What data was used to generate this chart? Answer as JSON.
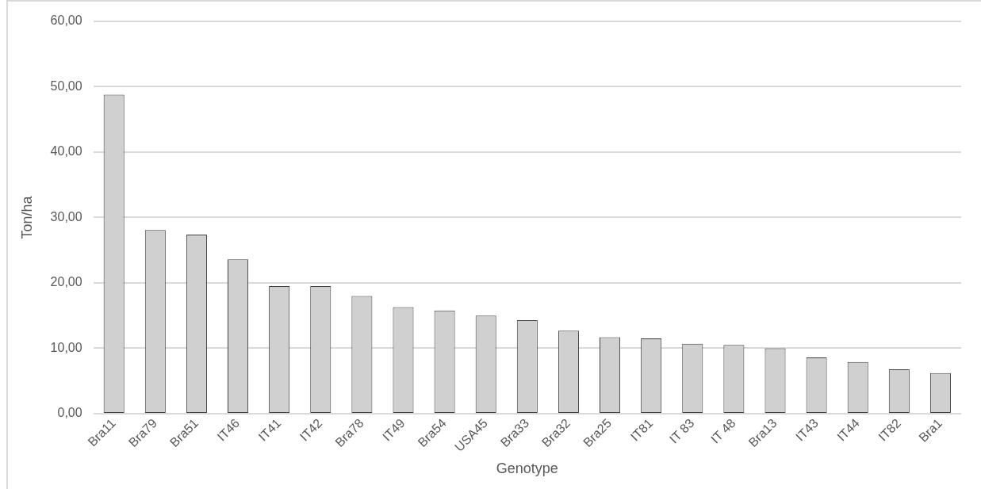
{
  "chart_data": {
    "type": "bar",
    "xlabel": "Genotype",
    "ylabel": "Ton/ha",
    "categories": [
      "Bra11",
      "Bra79",
      "Bra51",
      "IT46",
      "IT41",
      "IT42",
      "Bra78",
      "IT49",
      "Bra54",
      "USA45",
      "Bra33",
      "Bra32",
      "Bra25",
      "IT81",
      "IT 83",
      "IT 48",
      "Bra13",
      "IT43",
      "IT44",
      "IT82",
      "Bra1"
    ],
    "values": [
      48.8,
      28.1,
      27.4,
      23.6,
      19.5,
      19.5,
      18.0,
      16.3,
      15.8,
      15.0,
      14.3,
      12.7,
      11.7,
      11.5,
      10.7,
      10.5,
      10.0,
      8.6,
      7.9,
      6.8,
      6.2
    ],
    "color": "#d0d0d0",
    "ylim": [
      0,
      60
    ],
    "yticks": [
      {
        "value": 0,
        "label": "0,00"
      },
      {
        "value": 10,
        "label": "10,00"
      },
      {
        "value": 20,
        "label": "20,00"
      },
      {
        "value": 30,
        "label": "30,00"
      },
      {
        "value": 40,
        "label": "40,00"
      },
      {
        "value": 50,
        "label": "50,00"
      },
      {
        "value": 60,
        "label": "60,00"
      }
    ],
    "grid": "y",
    "legend": false
  }
}
